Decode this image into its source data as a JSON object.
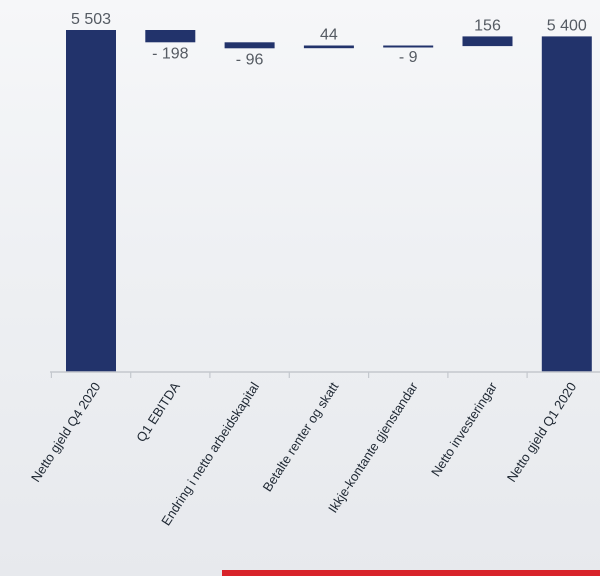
{
  "chart_data": {
    "type": "waterfall",
    "categories": [
      "Netto gjeld Q4 2020",
      "Q1 EBITDA",
      "Endring i netto arbeidskapital",
      "Betalte renter og skatt",
      "Ikkje-kontante gjenstandar",
      "Netto investeringar",
      "Netto gjeld Q1 2020"
    ],
    "values": [
      5503,
      -198,
      -96,
      44,
      -9,
      156,
      5400
    ],
    "bar_kinds": [
      "total",
      "delta",
      "delta",
      "delta",
      "delta",
      "delta",
      "total"
    ],
    "labels": [
      "5 503",
      "- 198",
      "- 96",
      "44",
      "- 9",
      "156",
      "5 400"
    ],
    "label_positions": [
      "above",
      "below",
      "below",
      "above",
      "below",
      "above",
      "above"
    ],
    "bar_color": "#22336b",
    "title": "",
    "xlabel": "",
    "ylabel": "",
    "legend": "none",
    "grid": false
  },
  "colors": {
    "bar": "#22336b",
    "axis": "#c4c8ce",
    "accent": "#d8232a"
  }
}
